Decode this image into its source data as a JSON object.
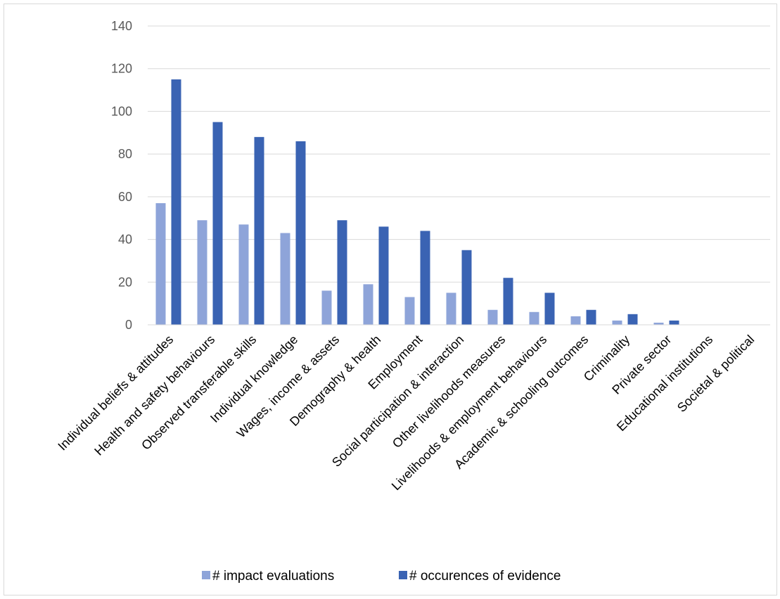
{
  "chart_data": {
    "type": "bar",
    "title": "",
    "xlabel": "",
    "ylabel": "",
    "ylim": [
      0,
      140
    ],
    "yticks": [
      0,
      20,
      40,
      60,
      80,
      100,
      120,
      140
    ],
    "grid": true,
    "legend_position": "bottom",
    "categories": [
      "Individual beliefs & attitudes",
      "Health and safety behaviours",
      "Observed transferable skills",
      "Individual knowledge",
      "Wages, income & assets",
      "Demography & health",
      "Employment",
      "Social participation & interaction",
      "Other livelihoods measures",
      "Livelihoods & employment behaviours",
      "Academic & schooling outcomes",
      "Criminality",
      "Private sector",
      "Educational institutions",
      "Societal & political"
    ],
    "series": [
      {
        "name": "# impact evaluations",
        "color": "#8ea4d9",
        "values": [
          57,
          49,
          47,
          43,
          16,
          19,
          13,
          15,
          7,
          6,
          4,
          2,
          1,
          0,
          0
        ]
      },
      {
        "name": "# occurences of evidence",
        "color": "#3a63b3",
        "values": [
          115,
          95,
          88,
          86,
          49,
          46,
          44,
          35,
          22,
          15,
          7,
          5,
          2,
          0,
          0
        ]
      }
    ]
  }
}
